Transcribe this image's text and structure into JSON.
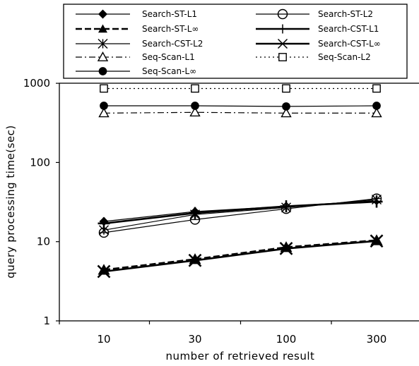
{
  "chart_data": {
    "type": "line",
    "categories": [
      "10",
      "30",
      "100",
      "300"
    ],
    "xlabel": "number of retrieved result",
    "ylabel": "query processing time(sec)",
    "yscale": "log",
    "ylim": [
      1,
      1000
    ],
    "yticks": [
      "1",
      "10",
      "100",
      "1000"
    ],
    "grid": false,
    "legend_position": "top",
    "series": [
      {
        "name": "Search-ST-L1",
        "marker": "diamond-filled",
        "dash": "solid",
        "weight": "thin",
        "values": [
          18,
          24,
          28,
          33
        ]
      },
      {
        "name": "Search-ST-L2",
        "marker": "circle-cross",
        "dash": "solid",
        "weight": "thin",
        "values": [
          13,
          19,
          26,
          35
        ]
      },
      {
        "name": "Search-ST-L∞",
        "marker": "triangle-filled",
        "dash": "dashed",
        "weight": "bold",
        "values": [
          4.4,
          6.0,
          8.5,
          10.4
        ]
      },
      {
        "name": "Search-CST-L1",
        "marker": "plus",
        "dash": "solid",
        "weight": "bold",
        "values": [
          17,
          23,
          28,
          32
        ]
      },
      {
        "name": "Search-CST-L2",
        "marker": "asterisk",
        "dash": "solid",
        "weight": "thin",
        "values": [
          14,
          22,
          27,
          34
        ]
      },
      {
        "name": "Search-CST-L∞",
        "marker": "x",
        "dash": "solid",
        "weight": "bold",
        "values": [
          4.2,
          5.8,
          8.2,
          10.2
        ]
      },
      {
        "name": "Seq-Scan-L1",
        "marker": "triangle-open",
        "dash": "dashdot",
        "weight": "thin",
        "values": [
          420,
          430,
          420,
          420
        ]
      },
      {
        "name": "Seq-Scan-L2",
        "marker": "square-open",
        "dash": "dotted",
        "weight": "thin",
        "values": [
          860,
          860,
          860,
          860
        ]
      },
      {
        "name": "Seq-Scan-L∞",
        "marker": "circle-filled",
        "dash": "solid",
        "weight": "thin",
        "values": [
          520,
          520,
          510,
          520
        ]
      }
    ]
  }
}
